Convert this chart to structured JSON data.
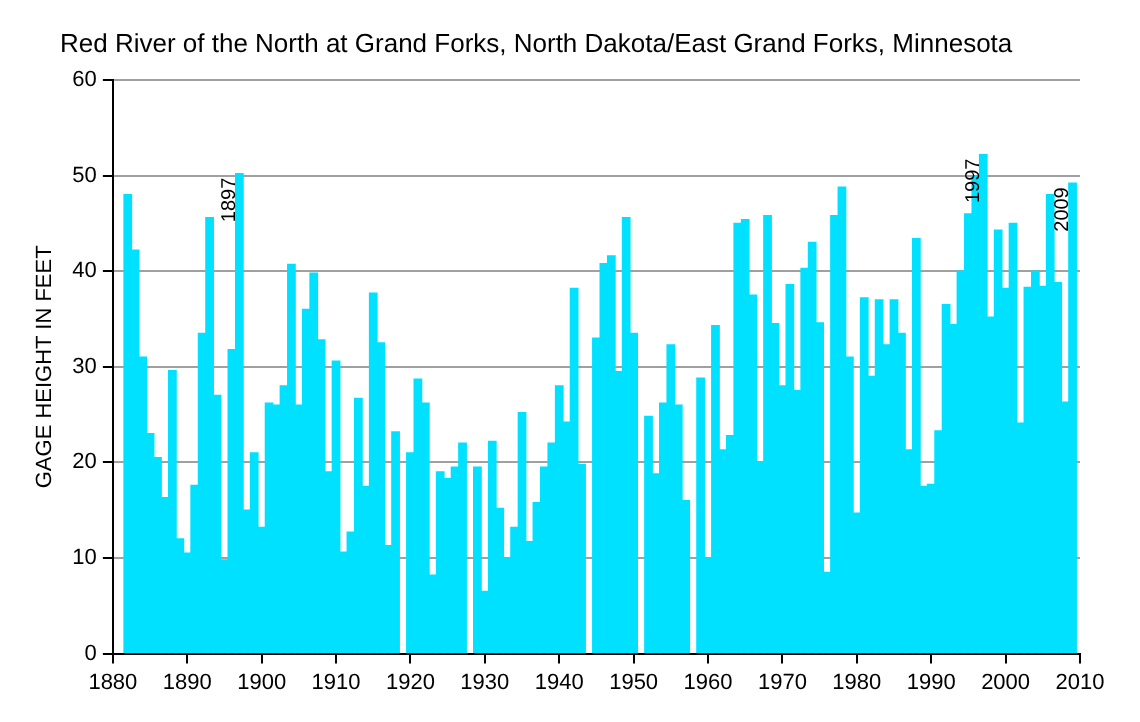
{
  "chart_data": {
    "type": "bar",
    "title": "Red River of the North at Grand Forks, North Dakota/East Grand Forks, Minnesota",
    "ylabel": "GAGE HEIGHT IN FEET",
    "x": [
      1882,
      1883,
      1884,
      1885,
      1886,
      1887,
      1888,
      1889,
      1890,
      1891,
      1892,
      1893,
      1894,
      1895,
      1896,
      1897,
      1898,
      1899,
      1900,
      1901,
      1902,
      1903,
      1904,
      1905,
      1906,
      1907,
      1908,
      1909,
      1910,
      1911,
      1912,
      1913,
      1914,
      1915,
      1916,
      1917,
      1918,
      1919,
      1920,
      1921,
      1922,
      1923,
      1924,
      1925,
      1926,
      1927,
      1928,
      1929,
      1930,
      1931,
      1932,
      1933,
      1934,
      1935,
      1936,
      1937,
      1938,
      1939,
      1940,
      1941,
      1942,
      1943,
      1944,
      1945,
      1946,
      1947,
      1948,
      1949,
      1950,
      1951,
      1952,
      1953,
      1954,
      1955,
      1956,
      1957,
      1958,
      1959,
      1960,
      1961,
      1962,
      1963,
      1964,
      1965,
      1966,
      1967,
      1968,
      1969,
      1970,
      1971,
      1972,
      1973,
      1974,
      1975,
      1976,
      1977,
      1978,
      1979,
      1980,
      1981,
      1982,
      1983,
      1984,
      1985,
      1986,
      1987,
      1988,
      1989,
      1990,
      1991,
      1992,
      1993,
      1994,
      1995,
      1996,
      1997,
      1998,
      1999,
      2000,
      2001,
      2002,
      2003,
      2004,
      2005,
      2006,
      2007,
      2008,
      2009
    ],
    "values": [
      48,
      42.2,
      31,
      23,
      20.5,
      16.3,
      29.6,
      12,
      10.5,
      17.6,
      33.5,
      45.6,
      27,
      9.8,
      31.8,
      50.2,
      15,
      21,
      13.2,
      26.2,
      26,
      28,
      40.7,
      26,
      36,
      39.8,
      32.8,
      19,
      30.6,
      10.6,
      12.7,
      26.7,
      17.5,
      37.7,
      32.5,
      11.3,
      23.2,
      null,
      21,
      28.7,
      26.2,
      8.2,
      19,
      18.3,
      19.5,
      22,
      null,
      19.5,
      6.5,
      22.2,
      15.2,
      10,
      13.2,
      25.2,
      11.7,
      15.8,
      19.5,
      22,
      28,
      24.2,
      38.2,
      19.8,
      null,
      33,
      40.8,
      41.6,
      29.5,
      45.6,
      33.5,
      null,
      24.8,
      18.8,
      26.2,
      32.3,
      26,
      16,
      null,
      28.8,
      10,
      34.3,
      21.3,
      22.8,
      45,
      45.4,
      37.5,
      20,
      45.8,
      34.5,
      28,
      38.6,
      27.5,
      40.3,
      43,
      34.6,
      8.5,
      45.8,
      48.8,
      31,
      14.7,
      37.2,
      29,
      37,
      32.3,
      37,
      33.5,
      21.3,
      43.4,
      17.5,
      17.7,
      23.3,
      36.5,
      34.4,
      40,
      46,
      50,
      52.2,
      35.2,
      44.3,
      38.2,
      45,
      24.1,
      38.3,
      40,
      38.4,
      48,
      38.8,
      26.3,
      49.2
    ],
    "color": "#00e1ff",
    "xlim": [
      1880,
      2010
    ],
    "xticks": [
      1880,
      1890,
      1900,
      1910,
      1920,
      1930,
      1940,
      1950,
      1960,
      1970,
      1980,
      1990,
      2000,
      2010
    ],
    "ylim": [
      0,
      60
    ],
    "yticks": [
      0,
      10,
      20,
      30,
      40,
      50,
      60
    ],
    "grid": "y",
    "annotations": [
      {
        "text": "1897",
        "x": 1897,
        "y": 50.2
      },
      {
        "text": "1997",
        "x": 1997,
        "y": 52.2
      },
      {
        "text": "2009",
        "x": 2009,
        "y": 49.2
      }
    ]
  }
}
